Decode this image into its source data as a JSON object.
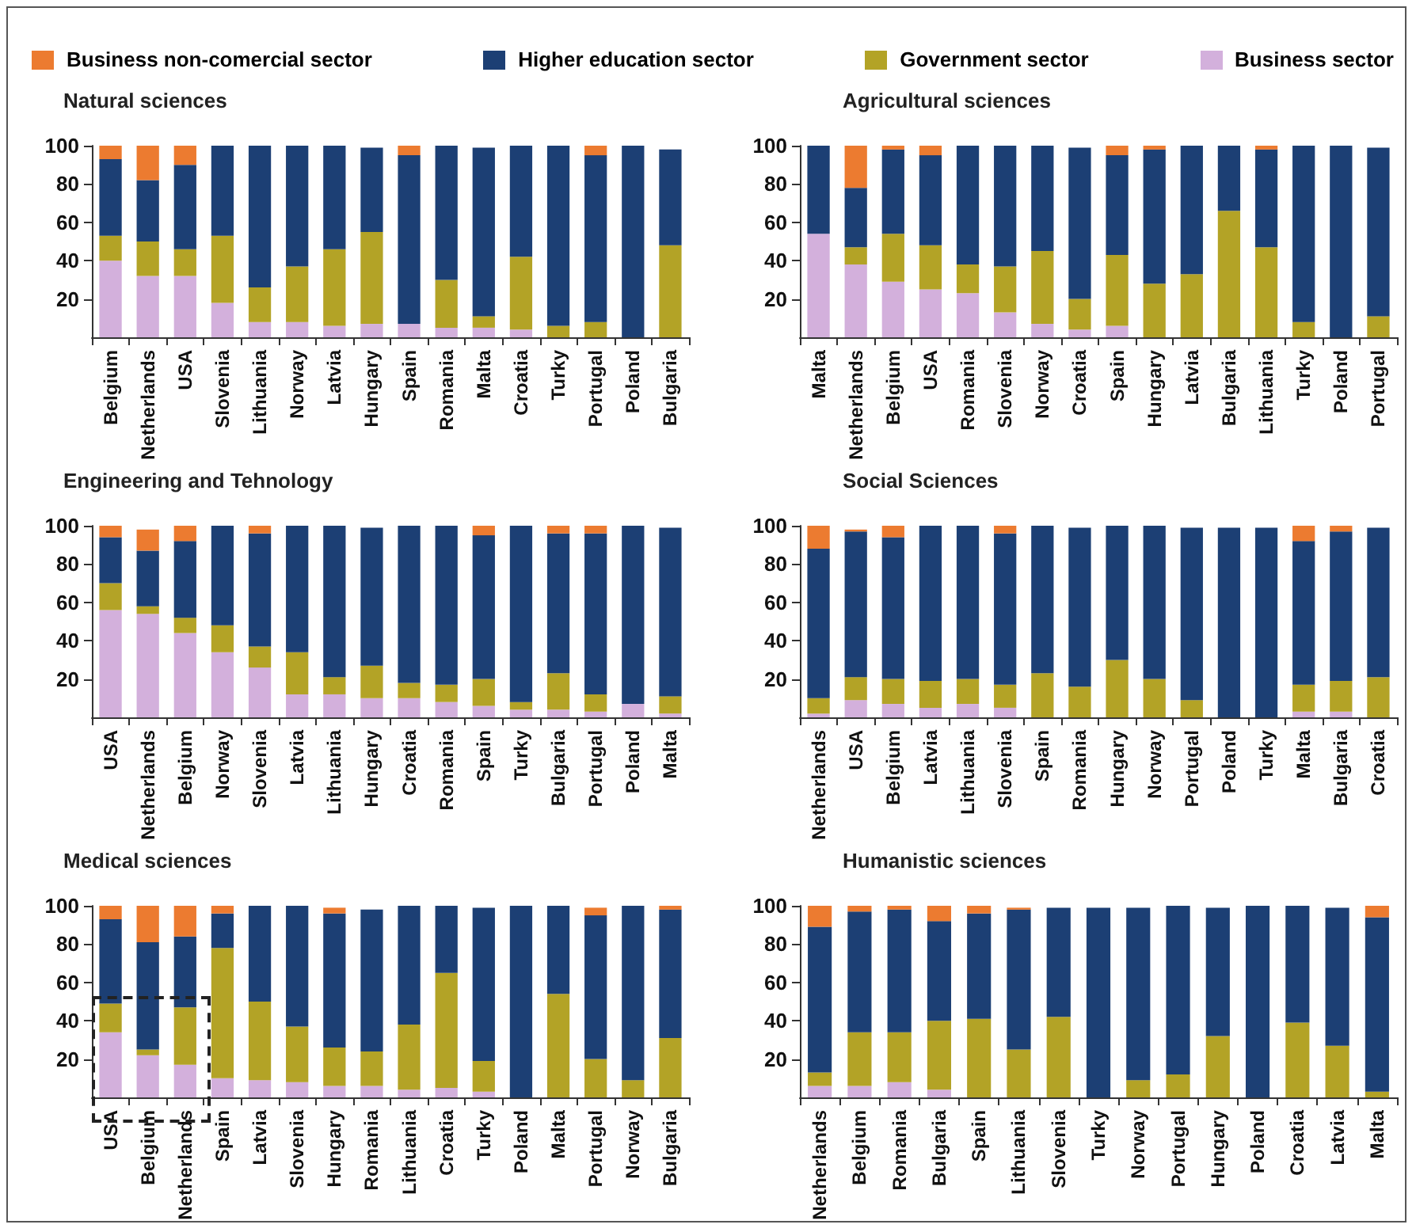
{
  "chart_data": [
    {
      "type": "bar",
      "title": "Natural sciences",
      "stacked": true,
      "ylim": [
        0,
        100
      ],
      "yticks": [
        20,
        40,
        60,
        80,
        100
      ],
      "grid": false,
      "legend": "top",
      "categories": [
        "Belgium",
        "Netherlands",
        "USA",
        "Slovenia",
        "Lithuania",
        "Norway",
        "Latvia",
        "Hungary",
        "Spain",
        "Romania",
        "Malta",
        "Croatia",
        "Turky",
        "Portugal",
        "Poland",
        "Bulgaria"
      ],
      "series": [
        {
          "name": "Business sector",
          "color": "#d3b0dc",
          "values": [
            40,
            32,
            32,
            18,
            8,
            8,
            6,
            7,
            7,
            5,
            5,
            4,
            0,
            0,
            0,
            0
          ]
        },
        {
          "name": "Government sector",
          "color": "#b3a326",
          "values": [
            13,
            18,
            14,
            35,
            18,
            29,
            40,
            48,
            0,
            25,
            6,
            38,
            6,
            8,
            0,
            48
          ]
        },
        {
          "name": "Higher education sector",
          "color": "#1c3f74",
          "values": [
            40,
            32,
            44,
            47,
            74,
            63,
            54,
            44,
            88,
            70,
            88,
            58,
            94,
            87,
            100,
            50
          ]
        },
        {
          "name": "Business non-comercial sector",
          "color": "#ec7b30",
          "values": [
            7,
            18,
            10,
            0,
            0,
            0,
            0,
            0,
            5,
            0,
            0,
            0,
            0,
            5,
            0,
            0
          ]
        }
      ]
    },
    {
      "type": "bar",
      "title": "Agricultural sciences",
      "stacked": true,
      "ylim": [
        0,
        100
      ],
      "yticks": [
        20,
        40,
        60,
        80,
        100
      ],
      "grid": false,
      "categories": [
        "Malta",
        "Netherlands",
        "Belgium",
        "USA",
        "Romania",
        "Slovenia",
        "Norway",
        "Croatia",
        "Spain",
        "Hungary",
        "Latvia",
        "Bulgaria",
        "Lithuania",
        "Turky",
        "Poland",
        "Portugal"
      ],
      "series": [
        {
          "color": "#d3b0dc",
          "values": [
            54,
            38,
            29,
            25,
            23,
            13,
            7,
            4,
            6,
            0,
            0,
            0,
            0,
            0,
            0,
            0
          ]
        },
        {
          "color": "#b3a326",
          "values": [
            0,
            9,
            25,
            23,
            15,
            24,
            38,
            16,
            37,
            28,
            33,
            66,
            47,
            8,
            0,
            11
          ]
        },
        {
          "color": "#1c3f74",
          "values": [
            46,
            31,
            44,
            47,
            62,
            63,
            55,
            79,
            52,
            70,
            67,
            34,
            51,
            92,
            100,
            88
          ]
        },
        {
          "color": "#ec7b30",
          "values": [
            0,
            22,
            2,
            5,
            0,
            0,
            0,
            0,
            5,
            2,
            0,
            0,
            2,
            0,
            0,
            0
          ]
        }
      ]
    },
    {
      "type": "bar",
      "title": "Engineering and Tehnology",
      "stacked": true,
      "ylim": [
        0,
        100
      ],
      "yticks": [
        20,
        40,
        60,
        80,
        100
      ],
      "grid": false,
      "categories": [
        "USA",
        "Netherlands",
        "Belgium",
        "Norway",
        "Slovenia",
        "Latvia",
        "Lithuania",
        "Hungary",
        "Croatia",
        "Romania",
        "Spain",
        "Turky",
        "Bulgaria",
        "Portugal",
        "Poland",
        "Malta"
      ],
      "series": [
        {
          "color": "#d3b0dc",
          "values": [
            56,
            54,
            44,
            34,
            26,
            12,
            12,
            10,
            10,
            8,
            6,
            4,
            4,
            3,
            7,
            2
          ]
        },
        {
          "color": "#b3a326",
          "values": [
            14,
            4,
            8,
            14,
            11,
            22,
            9,
            17,
            8,
            9,
            14,
            4,
            19,
            9,
            0,
            9
          ]
        },
        {
          "color": "#1c3f74",
          "values": [
            24,
            29,
            40,
            52,
            59,
            66,
            79,
            72,
            82,
            83,
            75,
            92,
            73,
            84,
            93,
            88
          ]
        },
        {
          "color": "#ec7b30",
          "values": [
            6,
            11,
            8,
            0,
            4,
            0,
            0,
            0,
            0,
            0,
            5,
            0,
            4,
            4,
            0,
            0
          ]
        }
      ]
    },
    {
      "type": "bar",
      "title": "Social Sciences",
      "stacked": true,
      "ylim": [
        0,
        100
      ],
      "yticks": [
        20,
        40,
        60,
        80,
        100
      ],
      "grid": false,
      "categories": [
        "Netherlands",
        "USA",
        "Belgium",
        "Latvia",
        "Lithuania",
        "Slovenia",
        "Spain",
        "Romania",
        "Hungary",
        "Norway",
        "Portugal",
        "Poland",
        "Turky",
        "Malta",
        "Bulgaria",
        "Croatia"
      ],
      "series": [
        {
          "color": "#d3b0dc",
          "values": [
            2,
            9,
            7,
            5,
            7,
            5,
            0,
            0,
            0,
            0,
            0,
            null,
            null,
            3,
            3,
            0
          ]
        },
        {
          "color": "#b3a326",
          "values": [
            8,
            12,
            13,
            14,
            13,
            12,
            23,
            16,
            30,
            20,
            9,
            0,
            0,
            14,
            16,
            21
          ]
        },
        {
          "color": "#1c3f74",
          "values": [
            78,
            76,
            74,
            81,
            80,
            79,
            77,
            83,
            70,
            80,
            90,
            99,
            99,
            75,
            78,
            78
          ]
        },
        {
          "color": "#ec7b30",
          "values": [
            12,
            1,
            6,
            0,
            0,
            4,
            0,
            0,
            0,
            0,
            0,
            0,
            0,
            8,
            3,
            0
          ]
        }
      ]
    },
    {
      "type": "bar",
      "title": "Medical sciences",
      "stacked": true,
      "ylim": [
        0,
        100
      ],
      "yticks": [
        20,
        40,
        60,
        80,
        100
      ],
      "grid": false,
      "categories": [
        "USA",
        "Belgium",
        "Netherlands",
        "Spain",
        "Latvia",
        "Slovenia",
        "Hungary",
        "Romania",
        "Lithuania",
        "Croatia",
        "Turky",
        "Poland",
        "Malta",
        "Portugal",
        "Norway",
        "Bulgaria"
      ],
      "series": [
        {
          "color": "#d3b0dc",
          "values": [
            34,
            22,
            17,
            10,
            9,
            8,
            6,
            6,
            4,
            5,
            3,
            0,
            0,
            0,
            0,
            0
          ]
        },
        {
          "color": "#b3a326",
          "values": [
            15,
            3,
            30,
            68,
            41,
            29,
            20,
            18,
            34,
            60,
            16,
            0,
            54,
            20,
            9,
            31
          ]
        },
        {
          "color": "#1c3f74",
          "values": [
            44,
            56,
            37,
            18,
            50,
            63,
            70,
            74,
            62,
            35,
            80,
            100,
            46,
            75,
            91,
            67
          ]
        },
        {
          "color": "#ec7b30",
          "values": [
            7,
            19,
            16,
            4,
            0,
            0,
            3,
            0,
            0,
            0,
            0,
            0,
            0,
            4,
            0,
            2
          ]
        }
      ]
    },
    {
      "type": "bar",
      "title": "Humanistic sciences",
      "stacked": true,
      "ylim": [
        0,
        100
      ],
      "yticks": [
        20,
        40,
        60,
        80,
        100
      ],
      "grid": false,
      "categories": [
        "Netherlands",
        "Belgium",
        "Romania",
        "Bulgaria",
        "Spain",
        "Lithuania",
        "Slovenia",
        "Turky",
        "Norway",
        "Portugal",
        "Hungary",
        "Poland",
        "Croatia",
        "Latvia",
        "Malta"
      ],
      "series": [
        {
          "color": "#d3b0dc",
          "values": [
            6,
            6,
            8,
            4,
            0,
            0,
            0,
            0,
            0,
            0,
            0,
            0,
            0,
            0,
            0
          ]
        },
        {
          "color": "#b3a326",
          "values": [
            7,
            28,
            26,
            36,
            41,
            25,
            42,
            0,
            9,
            12,
            32,
            0,
            39,
            27,
            3
          ]
        },
        {
          "color": "#1c3f74",
          "values": [
            76,
            63,
            64,
            52,
            55,
            73,
            57,
            99,
            90,
            88,
            67,
            100,
            61,
            72,
            91
          ]
        },
        {
          "color": "#ec7b30",
          "values": [
            11,
            3,
            2,
            8,
            4,
            1,
            0,
            0,
            0,
            0,
            0,
            0,
            0,
            0,
            6
          ]
        }
      ]
    }
  ]
}
